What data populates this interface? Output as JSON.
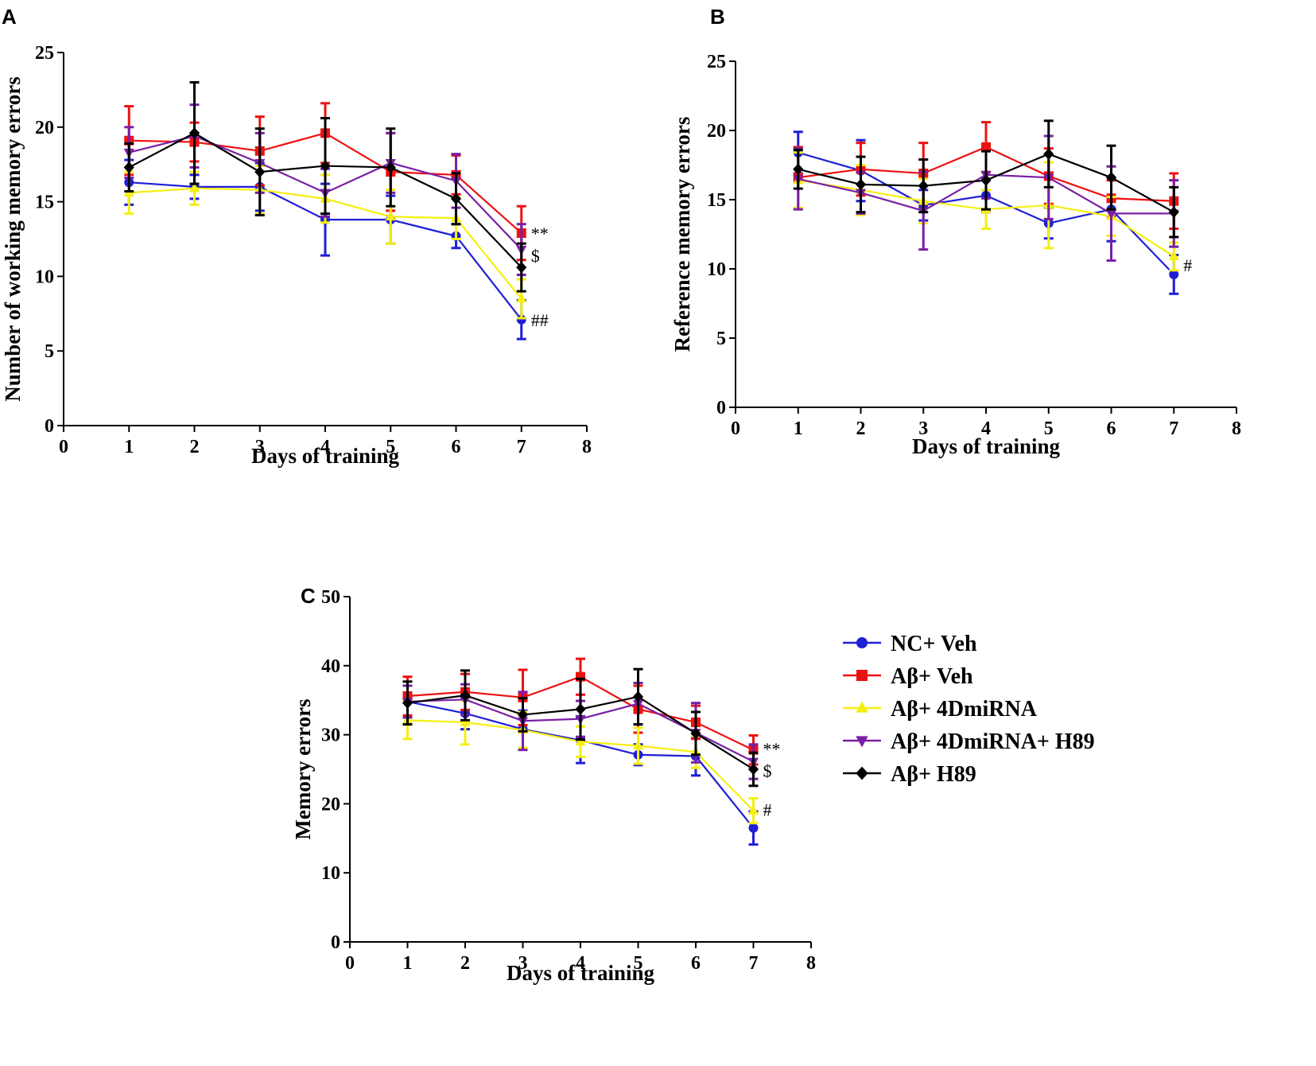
{
  "colors": {
    "NC+ Veh": "#1f1fd6",
    "Aβ+ Veh": "#ee1111",
    "Aβ+ 4DmiRNA": "#f5ef10",
    "Aβ+ 4DmiRNA+ H89": "#7a1fa6",
    "Aβ+ H89": "#000000"
  },
  "legend": {
    "items": [
      {
        "label": "NC+ Veh",
        "marker": "circle"
      },
      {
        "label": "Aβ+ Veh",
        "marker": "square"
      },
      {
        "label": "Aβ+ 4DmiRNA",
        "marker": "triangle-up"
      },
      {
        "label": "Aβ+ 4DmiRNA+ H89",
        "marker": "triangle-down"
      },
      {
        "label": "Aβ+ H89",
        "marker": "diamond"
      }
    ]
  },
  "chart_data": [
    {
      "panel": "A",
      "type": "line",
      "xlabel": "Days of training",
      "ylabel": "Number of working memory errors",
      "xlim": [
        0,
        8
      ],
      "ylim": [
        0,
        25
      ],
      "xticks": [
        0,
        1,
        2,
        3,
        4,
        5,
        6,
        7,
        8
      ],
      "yticks": [
        0,
        5,
        10,
        15,
        20,
        25
      ],
      "x": [
        1,
        2,
        3,
        4,
        5,
        6,
        7
      ],
      "series": [
        {
          "name": "NC+ Veh",
          "values": [
            16.3,
            16.0,
            16.0,
            13.8,
            13.8,
            12.7,
            7.1
          ],
          "errors": [
            1.5,
            0.8,
            1.6,
            2.4,
            1.6,
            0.8,
            1.3
          ]
        },
        {
          "name": "Aβ+ Veh",
          "values": [
            19.1,
            19.0,
            18.4,
            19.6,
            17.0,
            16.8,
            12.9
          ],
          "errors": [
            2.3,
            1.3,
            2.3,
            2.0,
            2.6,
            1.3,
            1.8
          ]
        },
        {
          "name": "Aβ+ 4DmiRNA",
          "values": [
            15.6,
            15.9,
            15.8,
            15.2,
            14.0,
            13.9,
            8.5
          ],
          "errors": [
            1.4,
            1.1,
            1.6,
            1.6,
            1.8,
            1.4,
            1.3
          ]
        },
        {
          "name": "Aβ+ 4DmiRNA+ H89",
          "values": [
            18.3,
            19.4,
            17.6,
            15.6,
            17.6,
            16.4,
            11.8
          ],
          "errors": [
            1.7,
            2.1,
            2.0,
            1.6,
            2.0,
            1.8,
            1.7
          ]
        },
        {
          "name": "Aβ+ H89",
          "values": [
            17.3,
            19.6,
            17.0,
            17.4,
            17.3,
            15.2,
            10.6
          ],
          "errors": [
            1.6,
            3.4,
            2.9,
            3.2,
            2.6,
            1.7,
            1.6
          ]
        }
      ],
      "annotations": [
        {
          "text": "**",
          "x": 7,
          "y": 12.9
        },
        {
          "text": "$",
          "x": 7,
          "y": 11.4
        },
        {
          "text": "##",
          "x": 7,
          "y": 7.1
        }
      ]
    },
    {
      "panel": "B",
      "type": "line",
      "xlabel": "Days of training",
      "ylabel": "Reference memory errors",
      "xlim": [
        0,
        8
      ],
      "ylim": [
        0,
        25
      ],
      "xticks": [
        0,
        1,
        2,
        3,
        4,
        5,
        6,
        7,
        8
      ],
      "yticks": [
        0,
        5,
        10,
        15,
        20,
        25
      ],
      "x": [
        1,
        2,
        3,
        4,
        5,
        6,
        7
      ],
      "series": [
        {
          "name": "NC+ Veh",
          "values": [
            18.4,
            17.1,
            14.6,
            15.3,
            13.3,
            14.3,
            9.6
          ],
          "errors": [
            1.5,
            2.2,
            1.1,
            1.2,
            1.1,
            2.3,
            1.4
          ]
        },
        {
          "name": "Aβ+ Veh",
          "values": [
            16.6,
            17.2,
            16.9,
            18.8,
            16.7,
            15.1,
            14.9
          ],
          "errors": [
            2.2,
            1.9,
            2.2,
            1.8,
            2.0,
            1.3,
            2.0
          ]
        },
        {
          "name": "Aβ+ 4DmiRNA",
          "values": [
            16.4,
            15.7,
            14.9,
            14.3,
            14.6,
            13.8,
            10.9
          ],
          "errors": [
            2.0,
            1.8,
            1.6,
            1.4,
            3.1,
            1.4,
            1.0
          ]
        },
        {
          "name": "Aβ+ 4DmiRNA+ H89",
          "values": [
            16.5,
            15.5,
            14.2,
            16.8,
            16.6,
            14.0,
            14.0
          ],
          "errors": [
            2.2,
            1.5,
            2.8,
            1.7,
            3.0,
            3.4,
            2.4
          ]
        },
        {
          "name": "Aβ+ H89",
          "values": [
            17.2,
            16.1,
            16.0,
            16.4,
            18.3,
            16.6,
            14.1
          ],
          "errors": [
            1.4,
            2.0,
            1.9,
            2.1,
            2.4,
            2.3,
            1.8
          ]
        }
      ],
      "annotations": [
        {
          "text": "#",
          "x": 7,
          "y": 10.3
        }
      ]
    },
    {
      "panel": "C",
      "type": "line",
      "xlabel": "Days of training",
      "ylabel": "Memory errors",
      "xlim": [
        0,
        8
      ],
      "ylim": [
        0,
        50
      ],
      "xticks": [
        0,
        1,
        2,
        3,
        4,
        5,
        6,
        7,
        8
      ],
      "yticks": [
        0,
        10,
        20,
        30,
        40,
        50
      ],
      "x": [
        1,
        2,
        3,
        4,
        5,
        6,
        7
      ],
      "series": [
        {
          "name": "NC+ Veh",
          "values": [
            34.8,
            33.1,
            30.8,
            29.2,
            27.1,
            26.9,
            16.5
          ],
          "errors": [
            2.3,
            2.3,
            2.7,
            3.3,
            1.5,
            2.8,
            2.4
          ]
        },
        {
          "name": "Aβ+ Veh",
          "values": [
            35.6,
            36.2,
            35.4,
            38.4,
            33.7,
            31.8,
            27.8
          ],
          "errors": [
            2.8,
            2.6,
            4.0,
            2.6,
            3.4,
            2.4,
            2.1
          ]
        },
        {
          "name": "Aβ+ 4DmiRNA",
          "values": [
            32.1,
            31.8,
            30.7,
            29.0,
            28.4,
            27.5,
            19.0
          ],
          "errors": [
            2.7,
            3.2,
            2.6,
            2.2,
            2.6,
            2.3,
            1.8
          ]
        },
        {
          "name": "Aβ+ 4DmiRNA+ H89",
          "values": [
            34.8,
            35.1,
            32.0,
            32.3,
            34.5,
            30.3,
            26.1
          ],
          "errors": [
            2.3,
            2.2,
            4.2,
            2.6,
            3.0,
            4.3,
            2.5
          ]
        },
        {
          "name": "Aβ+ H89",
          "values": [
            34.6,
            35.7,
            32.9,
            33.7,
            35.5,
            30.2,
            25.0
          ],
          "errors": [
            3.1,
            3.6,
            2.4,
            4.4,
            4.0,
            3.1,
            2.4
          ]
        }
      ],
      "annotations": [
        {
          "text": "**",
          "x": 7,
          "y": 28.0
        },
        {
          "text": "$",
          "x": 7,
          "y": 24.8
        },
        {
          "text": "#",
          "x": 7,
          "y": 19.2
        }
      ]
    }
  ]
}
